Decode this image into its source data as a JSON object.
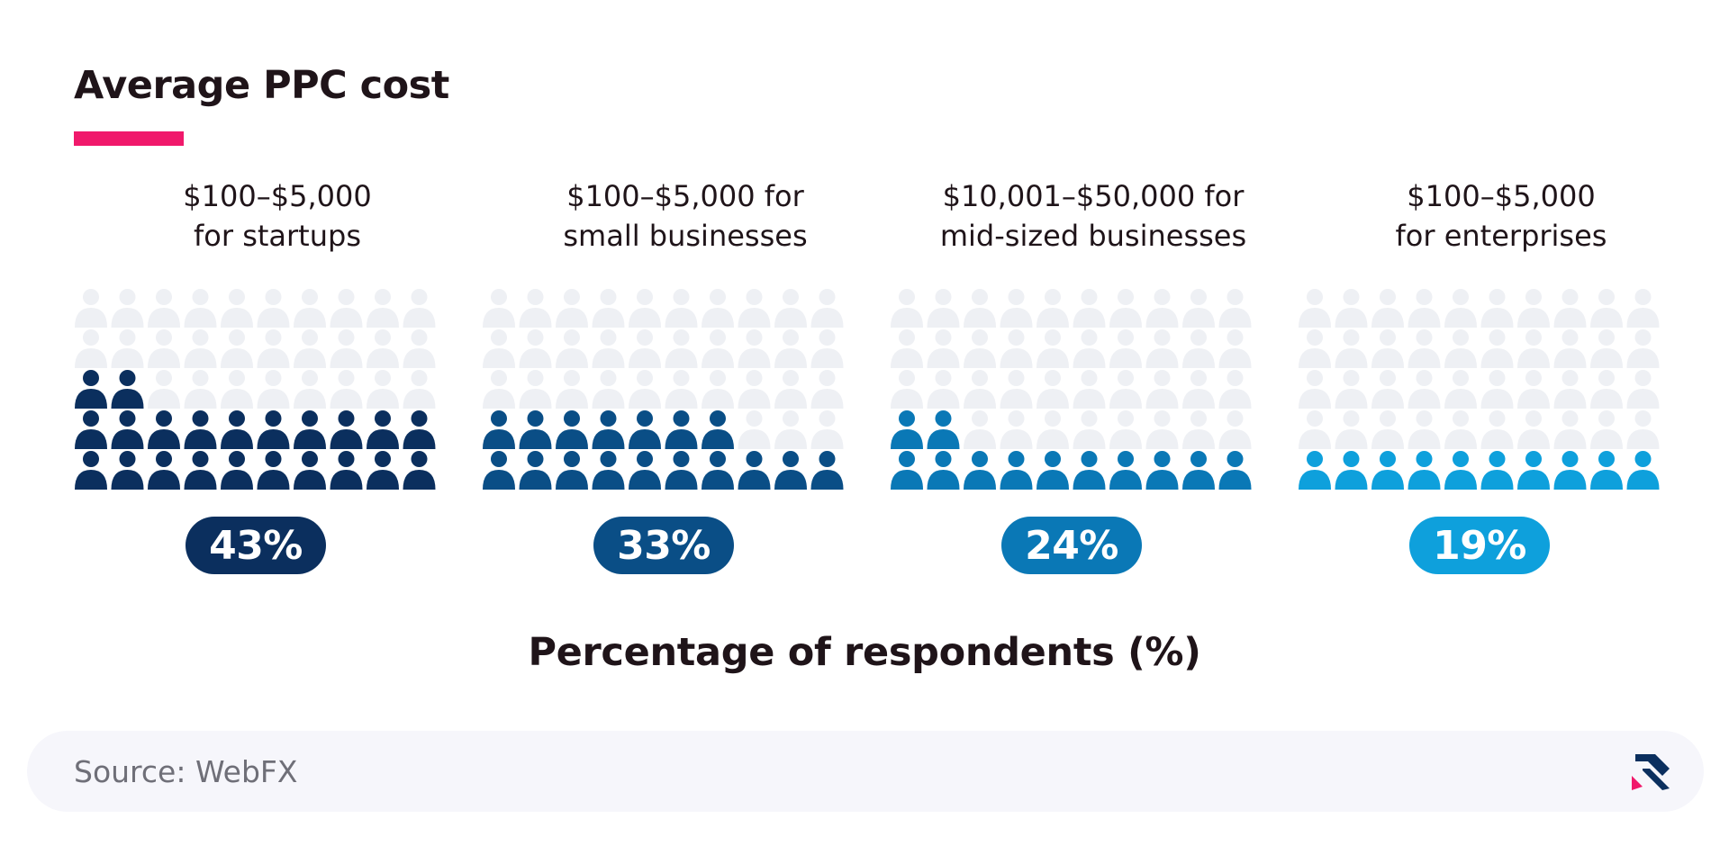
{
  "title": "Average PPC cost",
  "colors": {
    "accent": "#f0196b",
    "inactive": "#eef0f4",
    "text": "#1f1419",
    "source_bg": "#f6f6fb"
  },
  "chart_data": {
    "type": "pictogram",
    "title": "Average PPC cost",
    "xlabel": "Percentage of respondents (%)",
    "icons_per_group": 50,
    "grid": {
      "columns": 10,
      "rows": 5
    },
    "series": [
      {
        "label": "$100–$5,000\nfor startups",
        "value": 43,
        "display": "43%",
        "color": "#0b2f5e"
      },
      {
        "label": "$100–$5,000 for\nsmall businesses",
        "value": 33,
        "display": "33%",
        "color": "#0a4e86"
      },
      {
        "label": "$10,001–$50,000 for\nmid-sized businesses",
        "value": 24,
        "display": "24%",
        "color": "#0a78b6"
      },
      {
        "label": "$100–$5,000\nfor enterprises",
        "value": 19,
        "display": "19%",
        "color": "#0ea0dc"
      }
    ]
  },
  "source": {
    "text": "Source: WebFX",
    "logo_icon": "webfx-logo-icon"
  }
}
